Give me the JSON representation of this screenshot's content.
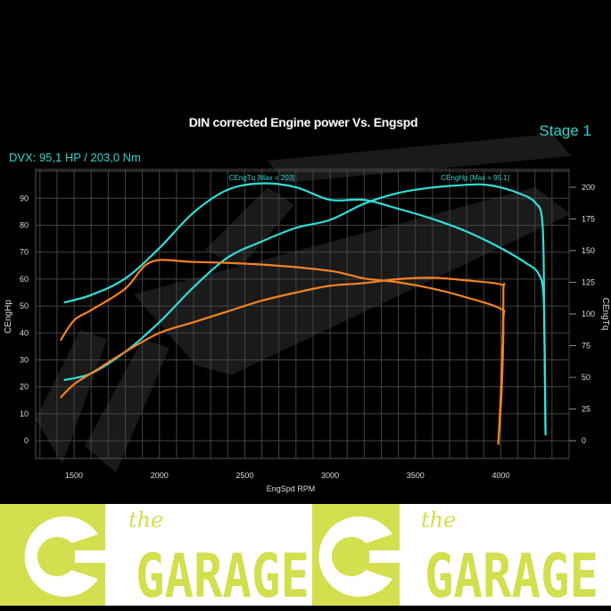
{
  "header": {
    "title": "DIN corrected Engine power Vs. Engspd",
    "stage": "Stage 1",
    "summary": "DVX:   95,1 HP / 203,0 Nm"
  },
  "chart_data": {
    "type": "line",
    "title": "DIN corrected Engine power Vs. Engspd",
    "xlabel": "EngSpd RPM",
    "ylabel": "CEngHp",
    "y2label": "CEngTq",
    "xlim": [
      1275,
      4400
    ],
    "ylim": [
      -6.6,
      100.7
    ],
    "y2lim": [
      -14,
      214
    ],
    "xticks": [
      1500,
      2000,
      2500,
      3000,
      3500,
      4000
    ],
    "yticks": [
      0,
      10,
      20,
      30,
      40,
      50,
      60,
      70,
      80,
      90
    ],
    "y2ticks": [
      0,
      25,
      50,
      75,
      100,
      125,
      150,
      175,
      200
    ],
    "grid": true,
    "annotations": [
      {
        "text": "CEngTq [Max = 203]",
        "rpm": 2600
      },
      {
        "text": "CEngHp [Max = 95.1]",
        "rpm": 3850
      }
    ],
    "series": [
      {
        "axis": "CEngTq",
        "color": "#2fe0d8",
        "x": [
          1440,
          1600,
          1800,
          2000,
          2200,
          2400,
          2600,
          2800,
          3000,
          3200,
          3400,
          3600,
          3800,
          4000,
          4150,
          4220,
          4250,
          4258,
          4262
        ],
        "y": [
          109,
          115,
          128,
          152,
          180,
          198,
          203,
          200,
          190,
          190,
          183,
          175,
          165,
          152,
          140,
          132,
          115,
          60,
          5
        ]
      },
      {
        "axis": "CEngHp",
        "color": "#2fe0d8",
        "x": [
          1440,
          1600,
          1800,
          2000,
          2200,
          2400,
          2600,
          2800,
          3000,
          3200,
          3400,
          3600,
          3800,
          3900,
          4000,
          4100,
          4200,
          4245,
          4255,
          4262
        ],
        "y": [
          22.5,
          25,
          33,
          44,
          57,
          68,
          74,
          79,
          82,
          88,
          92,
          94,
          95,
          95.1,
          94,
          92,
          88.5,
          80,
          40,
          2
        ]
      },
      {
        "axis": "CEngTq",
        "color": "#f58220",
        "x": [
          1420,
          1500,
          1600,
          1800,
          1950,
          2200,
          2600,
          3000,
          3200,
          3400,
          3600,
          3800,
          4000,
          4015,
          4005,
          3985
        ],
        "y": [
          79,
          95,
          103,
          120,
          141,
          141,
          139,
          134,
          128,
          125,
          120,
          113,
          104,
          95,
          40,
          -3
        ]
      },
      {
        "axis": "CEngHp",
        "color": "#f58220",
        "x": [
          1420,
          1500,
          1600,
          1800,
          2000,
          2200,
          2400,
          2600,
          2800,
          3000,
          3200,
          3400,
          3600,
          3800,
          4000,
          4015,
          4005,
          3985
        ],
        "y": [
          16,
          21,
          25,
          33,
          40,
          44,
          48,
          52,
          55,
          57.5,
          58.5,
          60,
          60.5,
          59.5,
          58,
          55,
          25,
          -1.5
        ]
      }
    ]
  },
  "footer": {
    "brand_small": "the",
    "brand_large": "GARAGE",
    "brand_color": "#d3df4e"
  }
}
